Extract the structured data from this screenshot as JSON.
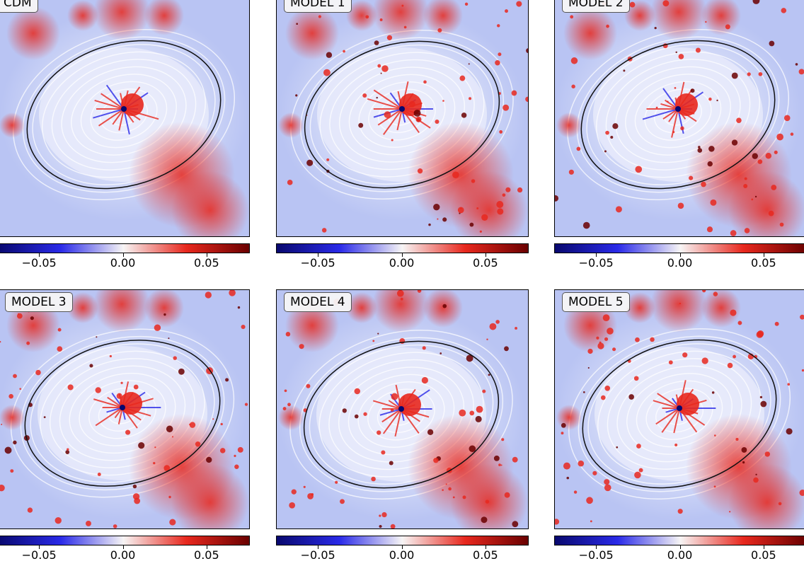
{
  "colors": {
    "neg_deep": "#08086e",
    "neg": "#2a2ae8",
    "mid": "#f7f5f5",
    "pos": "#e8281e",
    "pos_deep": "#6a0000",
    "background": "#b9c4f3",
    "contour": "#111111"
  },
  "chart_data": {
    "type": "heatmap",
    "colormap": "seismic",
    "colorbar": {
      "range": [
        -0.075,
        0.075
      ],
      "ticks": [
        -0.05,
        0.0,
        0.05
      ],
      "tick_labels": [
        "−0.05",
        "0.00",
        "0.05"
      ]
    },
    "panels": [
      {
        "label": "CDM"
      },
      {
        "label": "MODEL 1"
      },
      {
        "label": "MODEL 2"
      },
      {
        "label": "MODEL 3"
      },
      {
        "label": "MODEL 4"
      },
      {
        "label": "MODEL 5"
      }
    ]
  }
}
